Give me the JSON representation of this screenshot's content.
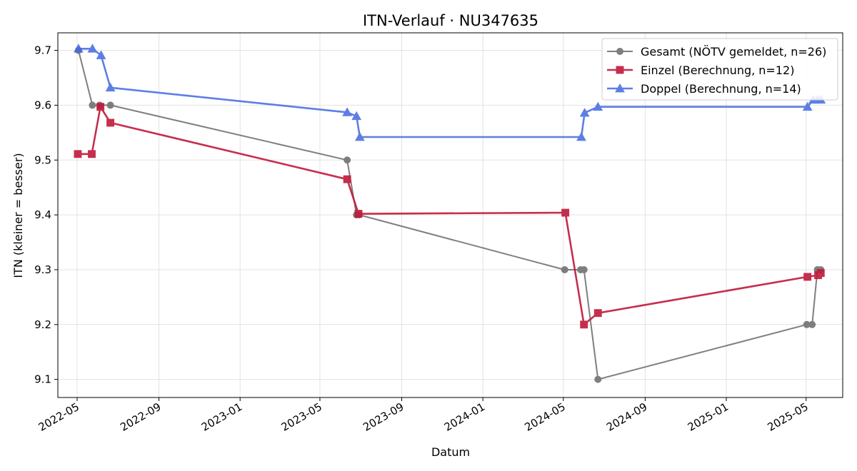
{
  "chart_data": {
    "type": "line",
    "title": "ITN-Verlauf · NU347635",
    "xlabel": "Datum",
    "ylabel": "ITN  (kleiner = besser)",
    "x_axis_type": "date",
    "xlim": [
      "2022-04-02",
      "2025-06-25"
    ],
    "ylim": [
      9.067,
      9.732
    ],
    "x_ticks": [
      "2022-05",
      "2022-09",
      "2023-01",
      "2023-05",
      "2023-09",
      "2024-01",
      "2024-05",
      "2024-09",
      "2025-01",
      "2025-05"
    ],
    "y_ticks": [
      9.1,
      9.2,
      9.3,
      9.4,
      9.5,
      9.6,
      9.7
    ],
    "grid": true,
    "legend_position": "top-right",
    "series": [
      {
        "name": "Gesamt (NÖTV gemeldet, n=26)",
        "color": "#555555",
        "marker": "circle",
        "points": [
          {
            "x": "2022-05-03",
            "y": 9.7
          },
          {
            "x": "2022-05-24",
            "y": 9.6
          },
          {
            "x": "2022-06-04",
            "y": 9.6
          },
          {
            "x": "2022-06-20",
            "y": 9.6
          },
          {
            "x": "2023-06-11",
            "y": 9.5
          },
          {
            "x": "2023-06-25",
            "y": 9.4
          },
          {
            "x": "2023-06-29",
            "y": 9.4
          },
          {
            "x": "2024-05-03",
            "y": 9.3
          },
          {
            "x": "2024-05-27",
            "y": 9.3
          },
          {
            "x": "2024-06-01",
            "y": 9.3
          },
          {
            "x": "2024-06-22",
            "y": 9.1
          },
          {
            "x": "2025-05-02",
            "y": 9.2
          },
          {
            "x": "2025-05-10",
            "y": 9.2
          },
          {
            "x": "2025-05-18",
            "y": 9.3
          },
          {
            "x": "2025-05-23",
            "y": 9.3
          }
        ]
      },
      {
        "name": "Einzel (Berechnung, n=12)",
        "color": "#c0183a",
        "marker": "square",
        "points": [
          {
            "x": "2022-05-02",
            "y": 9.511
          },
          {
            "x": "2022-05-23",
            "y": 9.511
          },
          {
            "x": "2022-06-05",
            "y": 9.597
          },
          {
            "x": "2022-06-20",
            "y": 9.568
          },
          {
            "x": "2023-06-11",
            "y": 9.465
          },
          {
            "x": "2023-06-28",
            "y": 9.402
          },
          {
            "x": "2024-05-04",
            "y": 9.404
          },
          {
            "x": "2024-06-01",
            "y": 9.2
          },
          {
            "x": "2024-06-22",
            "y": 9.221
          },
          {
            "x": "2025-05-03",
            "y": 9.287
          },
          {
            "x": "2025-05-19",
            "y": 9.29
          },
          {
            "x": "2025-05-23",
            "y": 9.294
          }
        ]
      },
      {
        "name": "Doppel (Berechnung, n=14)",
        "color": "#4169e1",
        "marker": "triangle",
        "points": [
          {
            "x": "2022-05-03",
            "y": 9.703
          },
          {
            "x": "2022-05-24",
            "y": 9.703
          },
          {
            "x": "2022-06-06",
            "y": 9.691
          },
          {
            "x": "2022-06-20",
            "y": 9.632
          },
          {
            "x": "2023-06-11",
            "y": 9.587
          },
          {
            "x": "2023-06-25",
            "y": 9.58
          },
          {
            "x": "2023-06-30",
            "y": 9.542
          },
          {
            "x": "2024-05-28",
            "y": 9.542
          },
          {
            "x": "2024-06-02",
            "y": 9.586
          },
          {
            "x": "2024-06-22",
            "y": 9.597
          },
          {
            "x": "2025-05-03",
            "y": 9.597
          },
          {
            "x": "2025-05-12",
            "y": 9.61
          },
          {
            "x": "2025-05-18",
            "y": 9.61
          },
          {
            "x": "2025-05-23",
            "y": 9.61
          }
        ]
      }
    ]
  }
}
